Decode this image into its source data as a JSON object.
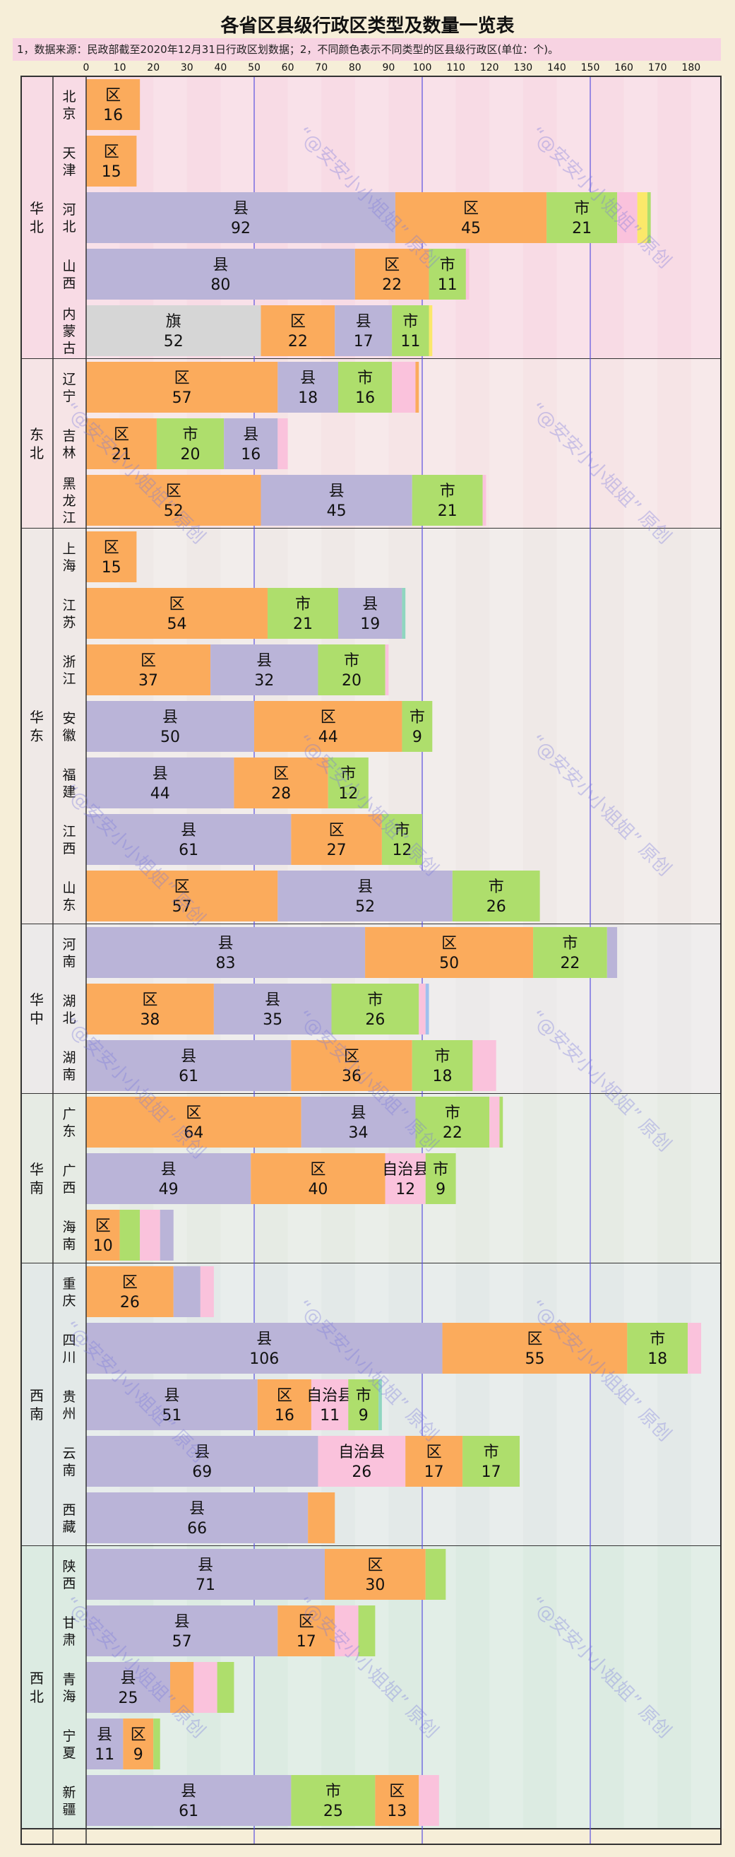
{
  "title": "各省区县级行政区类型及数量一览表",
  "subtitle": "1，数据来源：民政部截至2020年12月31日行政区划数据；2，不同颜色表示不同类型的区县级行政区(单位：个)。",
  "watermark": "“@安安小小姐姐” 原创",
  "colors": {
    "区": "#fbab5c",
    "县": "#bab4d8",
    "市": "#aede6c",
    "旗": "#d6d6d6",
    "自治县": "#fac2dc",
    "自治旗": "#fbe86a",
    "特区": "#8fd6c0",
    "林区": "#a0c0ee"
  },
  "chart_data": {
    "type": "bar",
    "stacked": true,
    "orientation": "horizontal",
    "xlim": [
      0,
      190
    ],
    "xticks": [
      0,
      10,
      20,
      30,
      40,
      50,
      60,
      70,
      80,
      90,
      100,
      110,
      120,
      130,
      140,
      150,
      160,
      170,
      180
    ],
    "regions": [
      {
        "name": "华北",
        "provinces": [
          {
            "name": "北京",
            "segments": [
              {
                "type": "区",
                "value": 16,
                "label": true
              }
            ]
          },
          {
            "name": "天津",
            "segments": [
              {
                "type": "区",
                "value": 15,
                "label": true
              }
            ]
          },
          {
            "name": "河北",
            "segments": [
              {
                "type": "县",
                "value": 92,
                "label": true
              },
              {
                "type": "区",
                "value": 45,
                "label": true
              },
              {
                "type": "市",
                "value": 21,
                "label": true
              },
              {
                "type": "自治县",
                "value": 6
              },
              {
                "type": "自治旗",
                "value": 3
              },
              {
                "type": "市",
                "value": 1
              }
            ]
          },
          {
            "name": "山西",
            "segments": [
              {
                "type": "县",
                "value": 80,
                "label": true
              },
              {
                "type": "区",
                "value": 22,
                "label": true
              },
              {
                "type": "市",
                "value": 11,
                "label": true
              },
              {
                "type": "自治县",
                "value": 1
              }
            ]
          },
          {
            "name": "内蒙古",
            "segments": [
              {
                "type": "旗",
                "value": 52,
                "label": true
              },
              {
                "type": "区",
                "value": 22,
                "label": true
              },
              {
                "type": "县",
                "value": 17,
                "label": true
              },
              {
                "type": "市",
                "value": 11,
                "label": true
              },
              {
                "type": "自治旗",
                "value": 1
              }
            ]
          }
        ]
      },
      {
        "name": "东北",
        "provinces": [
          {
            "name": "辽宁",
            "segments": [
              {
                "type": "区",
                "value": 57,
                "label": true
              },
              {
                "type": "县",
                "value": 18,
                "label": true
              },
              {
                "type": "市",
                "value": 16,
                "label": true
              },
              {
                "type": "自治县",
                "value": 7
              },
              {
                "type": "区",
                "value": 1
              }
            ]
          },
          {
            "name": "吉林",
            "segments": [
              {
                "type": "区",
                "value": 21,
                "label": true
              },
              {
                "type": "市",
                "value": 20,
                "label": true
              },
              {
                "type": "县",
                "value": 16,
                "label": true
              },
              {
                "type": "自治县",
                "value": 3
              }
            ]
          },
          {
            "name": "黑龙江",
            "segments": [
              {
                "type": "区",
                "value": 52,
                "label": true
              },
              {
                "type": "县",
                "value": 45,
                "label": true
              },
              {
                "type": "市",
                "value": 21,
                "label": true
              },
              {
                "type": "自治县",
                "value": 1
              }
            ]
          }
        ]
      },
      {
        "name": "华东",
        "provinces": [
          {
            "name": "上海",
            "segments": [
              {
                "type": "区",
                "value": 15,
                "label": true
              }
            ]
          },
          {
            "name": "江苏",
            "segments": [
              {
                "type": "区",
                "value": 54,
                "label": true
              },
              {
                "type": "市",
                "value": 21,
                "label": true
              },
              {
                "type": "县",
                "value": 19,
                "label": true
              },
              {
                "type": "特区",
                "value": 1
              }
            ]
          },
          {
            "name": "浙江",
            "segments": [
              {
                "type": "区",
                "value": 37,
                "label": true
              },
              {
                "type": "县",
                "value": 32,
                "label": true
              },
              {
                "type": "市",
                "value": 20,
                "label": true
              },
              {
                "type": "自治县",
                "value": 1
              }
            ]
          },
          {
            "name": "安徽",
            "segments": [
              {
                "type": "县",
                "value": 50,
                "label": true
              },
              {
                "type": "区",
                "value": 44,
                "label": true
              },
              {
                "type": "市",
                "value": 9,
                "label": true
              }
            ]
          },
          {
            "name": "福建",
            "segments": [
              {
                "type": "县",
                "value": 44,
                "label": true
              },
              {
                "type": "区",
                "value": 28,
                "label": true
              },
              {
                "type": "市",
                "value": 12,
                "label": true
              }
            ]
          },
          {
            "name": "江西",
            "segments": [
              {
                "type": "县",
                "value": 61,
                "label": true
              },
              {
                "type": "区",
                "value": 27,
                "label": true
              },
              {
                "type": "市",
                "value": 12,
                "label": true
              }
            ]
          },
          {
            "name": "山东",
            "segments": [
              {
                "type": "区",
                "value": 57,
                "label": true
              },
              {
                "type": "县",
                "value": 52,
                "label": true
              },
              {
                "type": "市",
                "value": 26,
                "label": true
              }
            ]
          }
        ]
      },
      {
        "name": "华中",
        "provinces": [
          {
            "name": "河南",
            "segments": [
              {
                "type": "县",
                "value": 83,
                "label": true
              },
              {
                "type": "区",
                "value": 50,
                "label": true
              },
              {
                "type": "市",
                "value": 22,
                "label": true
              },
              {
                "type": "县",
                "value": 3
              }
            ]
          },
          {
            "name": "湖北",
            "segments": [
              {
                "type": "区",
                "value": 38,
                "label": true
              },
              {
                "type": "县",
                "value": 35,
                "label": true
              },
              {
                "type": "市",
                "value": 26,
                "label": true
              },
              {
                "type": "自治县",
                "value": 2
              },
              {
                "type": "林区",
                "value": 1
              }
            ]
          },
          {
            "name": "湖南",
            "segments": [
              {
                "type": "县",
                "value": 61,
                "label": true
              },
              {
                "type": "区",
                "value": 36,
                "label": true
              },
              {
                "type": "市",
                "value": 18,
                "label": true
              },
              {
                "type": "自治县",
                "value": 7
              }
            ]
          }
        ]
      },
      {
        "name": "华南",
        "provinces": [
          {
            "name": "广东",
            "segments": [
              {
                "type": "区",
                "value": 64,
                "label": true
              },
              {
                "type": "县",
                "value": 34,
                "label": true
              },
              {
                "type": "市",
                "value": 22,
                "label": true
              },
              {
                "type": "自治县",
                "value": 3
              },
              {
                "type": "市",
                "value": 1
              }
            ]
          },
          {
            "name": "广西",
            "segments": [
              {
                "type": "县",
                "value": 49,
                "label": true
              },
              {
                "type": "区",
                "value": 40,
                "label": true
              },
              {
                "type": "自治县",
                "value": 12,
                "label": true
              },
              {
                "type": "市",
                "value": 9,
                "label": true
              }
            ]
          },
          {
            "name": "海南",
            "segments": [
              {
                "type": "区",
                "value": 10,
                "label": true
              },
              {
                "type": "市",
                "value": 6
              },
              {
                "type": "自治县",
                "value": 6
              },
              {
                "type": "县",
                "value": 4
              }
            ]
          }
        ]
      },
      {
        "name": "西南",
        "provinces": [
          {
            "name": "重庆",
            "segments": [
              {
                "type": "区",
                "value": 26,
                "label": true
              },
              {
                "type": "县",
                "value": 8
              },
              {
                "type": "自治县",
                "value": 4
              }
            ]
          },
          {
            "name": "四川",
            "segments": [
              {
                "type": "县",
                "value": 106,
                "label": true
              },
              {
                "type": "区",
                "value": 55,
                "label": true
              },
              {
                "type": "市",
                "value": 18,
                "label": true
              },
              {
                "type": "自治县",
                "value": 4
              }
            ]
          },
          {
            "name": "贵州",
            "segments": [
              {
                "type": "县",
                "value": 51,
                "label": true
              },
              {
                "type": "区",
                "value": 16,
                "label": true
              },
              {
                "type": "自治县",
                "value": 11,
                "label": true
              },
              {
                "type": "市",
                "value": 9,
                "label": true
              },
              {
                "type": "特区",
                "value": 1
              }
            ]
          },
          {
            "name": "云南",
            "segments": [
              {
                "type": "县",
                "value": 69,
                "label": true
              },
              {
                "type": "自治县",
                "value": 26,
                "label": true
              },
              {
                "type": "区",
                "value": 17,
                "label": true
              },
              {
                "type": "市",
                "value": 17,
                "label": true
              }
            ]
          },
          {
            "name": "西藏",
            "segments": [
              {
                "type": "县",
                "value": 66,
                "label": true
              },
              {
                "type": "区",
                "value": 8
              }
            ]
          }
        ]
      },
      {
        "name": "西北",
        "provinces": [
          {
            "name": "陕西",
            "segments": [
              {
                "type": "县",
                "value": 71,
                "label": true
              },
              {
                "type": "区",
                "value": 30,
                "label": true
              },
              {
                "type": "市",
                "value": 6
              }
            ]
          },
          {
            "name": "甘肃",
            "segments": [
              {
                "type": "县",
                "value": 57,
                "label": true
              },
              {
                "type": "区",
                "value": 17,
                "label": true
              },
              {
                "type": "自治县",
                "value": 7
              },
              {
                "type": "市",
                "value": 5
              }
            ]
          },
          {
            "name": "青海",
            "segments": [
              {
                "type": "县",
                "value": 25,
                "label": true
              },
              {
                "type": "区",
                "value": 7
              },
              {
                "type": "自治县",
                "value": 7
              },
              {
                "type": "市",
                "value": 5
              }
            ]
          },
          {
            "name": "宁夏",
            "segments": [
              {
                "type": "县",
                "value": 11,
                "label": true
              },
              {
                "type": "区",
                "value": 9,
                "label": true
              },
              {
                "type": "市",
                "value": 2
              }
            ]
          },
          {
            "name": "新疆",
            "segments": [
              {
                "type": "县",
                "value": 61,
                "label": true
              },
              {
                "type": "市",
                "value": 25,
                "label": true
              },
              {
                "type": "区",
                "value": 13,
                "label": true
              },
              {
                "type": "自治县",
                "value": 6
              }
            ]
          }
        ]
      }
    ]
  }
}
